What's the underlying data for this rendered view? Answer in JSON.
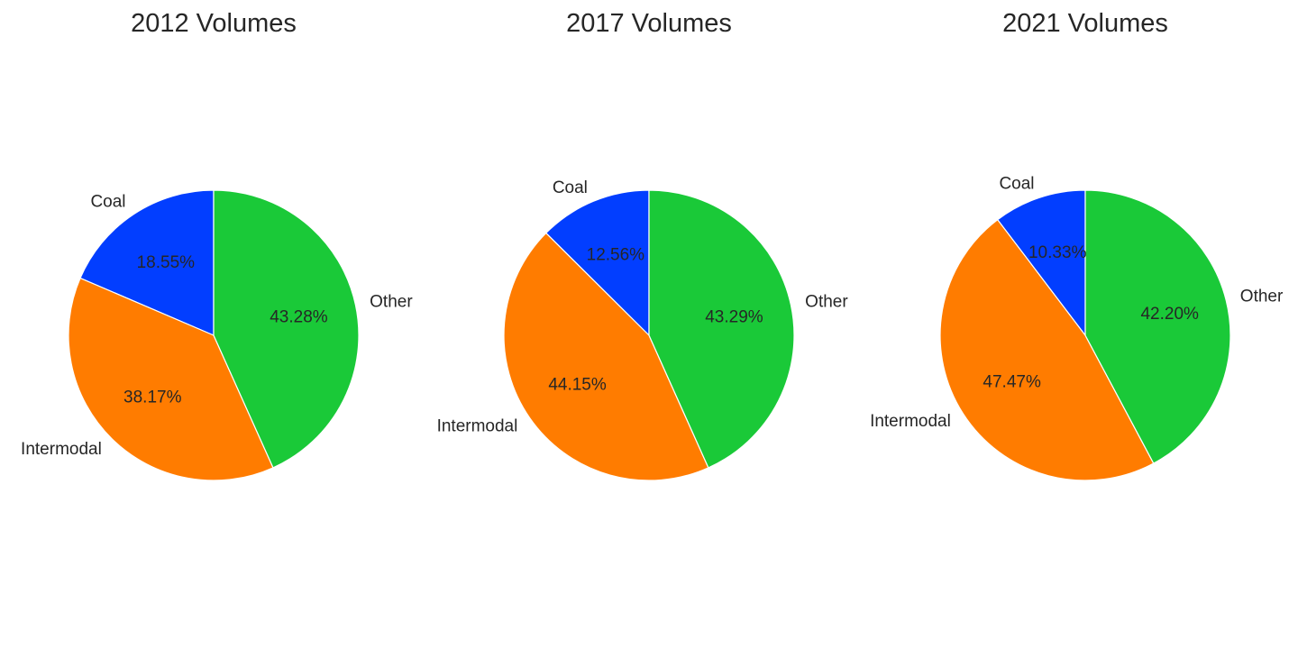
{
  "chart_data": [
    {
      "type": "pie",
      "title": "2012 Volumes",
      "categories": [
        "Coal",
        "Intermodal",
        "Other"
      ],
      "values": [
        18.55,
        38.17,
        43.28
      ],
      "value_labels": [
        "18.55%",
        "38.17%",
        "43.28%"
      ],
      "colors": [
        "#023eff",
        "#ff7c00",
        "#1ac938"
      ],
      "start_angle_deg": 90,
      "direction": "counterclockwise"
    },
    {
      "type": "pie",
      "title": "2017 Volumes",
      "categories": [
        "Coal",
        "Intermodal",
        "Other"
      ],
      "values": [
        12.56,
        44.15,
        43.29
      ],
      "value_labels": [
        "12.56%",
        "44.15%",
        "43.29%"
      ],
      "colors": [
        "#023eff",
        "#ff7c00",
        "#1ac938"
      ],
      "start_angle_deg": 90,
      "direction": "counterclockwise"
    },
    {
      "type": "pie",
      "title": "2021 Volumes",
      "categories": [
        "Coal",
        "Intermodal",
        "Other"
      ],
      "values": [
        10.33,
        47.47,
        42.2
      ],
      "value_labels": [
        "10.33%",
        "47.47%",
        "42.20%"
      ],
      "colors": [
        "#023eff",
        "#ff7c00",
        "#1ac938"
      ],
      "start_angle_deg": 90,
      "direction": "counterclockwise"
    }
  ]
}
